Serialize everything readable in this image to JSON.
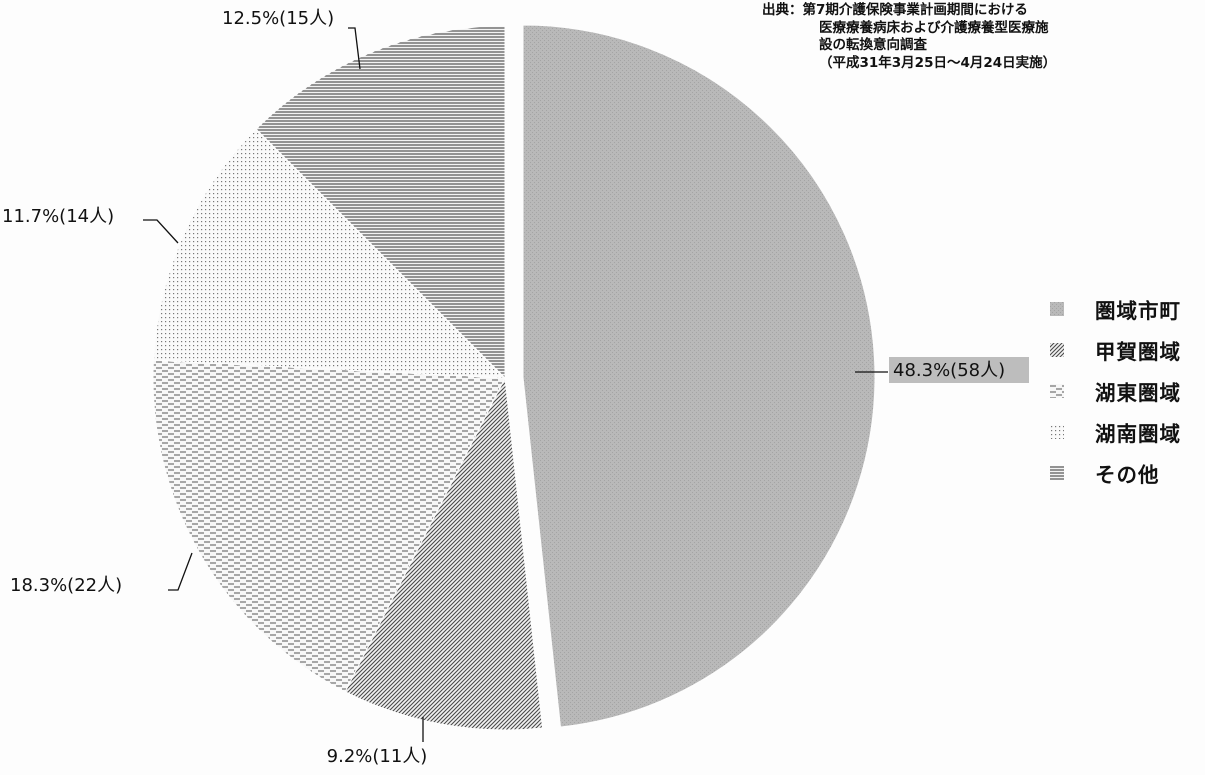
{
  "source_note": {
    "prefix": "出典：",
    "lines": [
      "第7期介護保険事業計画期間における",
      "医療療養病床および介護療養型医療施",
      "設の転換意向調査",
      "（平成31年3月25日～4月24日実施）"
    ]
  },
  "chart_data": {
    "type": "pie",
    "title": "",
    "slices": [
      {
        "name": "圏域市町",
        "percent": 48.3,
        "count": 58,
        "label": "48.3%(58人)",
        "pattern": "solid-gray"
      },
      {
        "name": "甲賀圏域",
        "percent": 9.2,
        "count": 11,
        "label": "9.2%(11人)",
        "pattern": "diagonal-hatch"
      },
      {
        "name": "湖東圏域",
        "percent": 18.3,
        "count": 22,
        "label": "18.3%(22人)",
        "pattern": "dashes"
      },
      {
        "name": "湖南圏域",
        "percent": 11.7,
        "count": 14,
        "label": "11.7%(14人)",
        "pattern": "dots"
      },
      {
        "name": "その他",
        "percent": 12.5,
        "count": 15,
        "label": "12.5%(15人)",
        "pattern": "horizontal-lines"
      }
    ],
    "exploded_slice": "圏域市町",
    "legend_position": "right"
  }
}
